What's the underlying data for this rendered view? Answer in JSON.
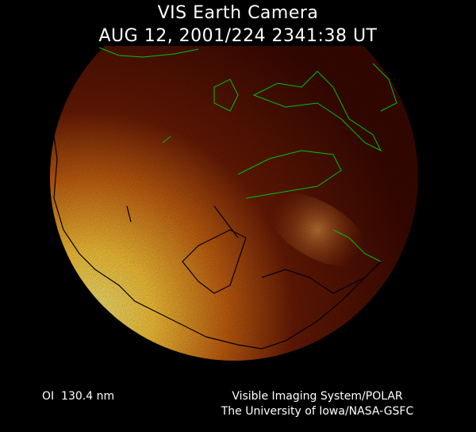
{
  "header": {
    "title": "VIS Earth Camera",
    "timestamp": "AUG 12, 2001/224 2341:38 UT"
  },
  "footer": {
    "wavelength": "OI  130.4 nm",
    "instrument": "Visible Imaging System/POLAR",
    "institution": "The University of Iowa/NASA-GSFC"
  },
  "colors": {
    "background": "#000000",
    "dayside_glow": "#ffd040",
    "nightside": "#3a0800",
    "coastline_dayside": "#000000",
    "coastline_nightside": "#00c000"
  }
}
